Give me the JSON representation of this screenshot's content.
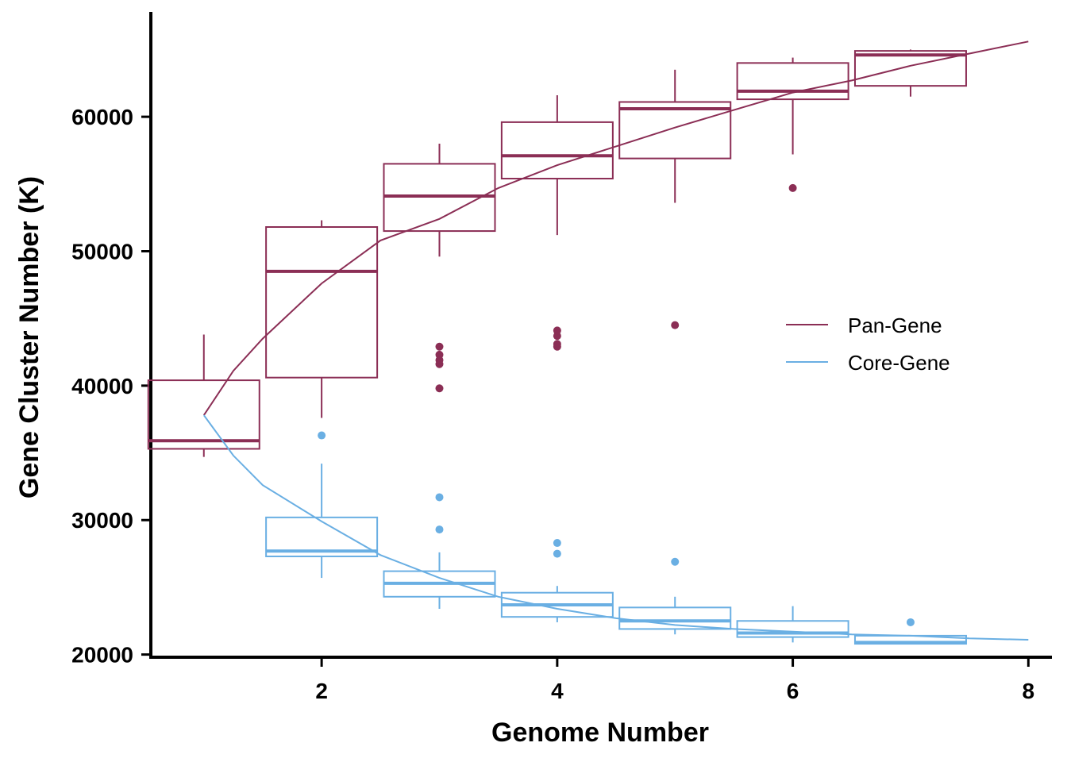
{
  "chart_data": {
    "type": "box",
    "xlabel": "Genome Number",
    "ylabel": "Gene Cluster Number (K)",
    "xlim": [
      0.55,
      8.2
    ],
    "ylim": [
      19800,
      67800
    ],
    "x_ticks": [
      2,
      4,
      6,
      8
    ],
    "y_ticks": [
      20000,
      30000,
      40000,
      50000,
      60000
    ],
    "legend": {
      "placement": "right-middle"
    },
    "series": [
      {
        "name": "Pan-Gene",
        "color": "#8B2E55",
        "boxes": [
          {
            "x": 1,
            "q1": 35300,
            "median": 35900,
            "q3": 40400,
            "whisker_low": 34700,
            "whisker_high": 43800,
            "outliers": []
          },
          {
            "x": 2,
            "q1": 40600,
            "median": 48500,
            "q3": 51800,
            "whisker_low": 37600,
            "whisker_high": 52300,
            "outliers": []
          },
          {
            "x": 3,
            "q1": 51500,
            "median": 54100,
            "q3": 56500,
            "whisker_low": 49600,
            "whisker_high": 58000,
            "outliers": [
              39800,
              41600,
              41900,
              42300,
              42900
            ]
          },
          {
            "x": 4,
            "q1": 55400,
            "median": 57100,
            "q3": 59600,
            "whisker_low": 51200,
            "whisker_high": 61600,
            "outliers": [
              42900,
              43100,
              43700,
              44100
            ]
          },
          {
            "x": 5,
            "q1": 56900,
            "median": 60600,
            "q3": 61100,
            "whisker_low": 53600,
            "whisker_high": 63500,
            "outliers": [
              44500
            ]
          },
          {
            "x": 6,
            "q1": 61300,
            "median": 61900,
            "q3": 64000,
            "whisker_low": 57200,
            "whisker_high": 64400,
            "outliers": [
              54700
            ]
          },
          {
            "x": 7,
            "q1": 62300,
            "median": 64600,
            "q3": 64900,
            "whisker_low": 61500,
            "whisker_high": 65000,
            "outliers": []
          }
        ],
        "fit_curve": {
          "x": [
            1.0,
            1.25,
            1.5,
            2.0,
            2.5,
            3.0,
            3.5,
            4.0,
            4.5,
            5.0,
            5.5,
            6.0,
            6.5,
            7.0,
            7.5,
            8.0
          ],
          "y": [
            37800,
            41100,
            43500,
            47600,
            50800,
            52400,
            54700,
            56400,
            57800,
            59200,
            60500,
            61800,
            62700,
            63800,
            64700,
            65600
          ]
        }
      },
      {
        "name": "Core-Gene",
        "color": "#6AAFE3",
        "boxes": [
          {
            "x": 2,
            "q1": 27300,
            "median": 27700,
            "q3": 30200,
            "whisker_low": 25700,
            "whisker_high": 34200,
            "outliers": [
              36300
            ]
          },
          {
            "x": 3,
            "q1": 24300,
            "median": 25300,
            "q3": 26200,
            "whisker_low": 23400,
            "whisker_high": 27600,
            "outliers": [
              29300,
              31700
            ]
          },
          {
            "x": 4,
            "q1": 22800,
            "median": 23700,
            "q3": 24600,
            "whisker_low": 22400,
            "whisker_high": 25100,
            "outliers": [
              27500,
              28300
            ]
          },
          {
            "x": 5,
            "q1": 21900,
            "median": 22500,
            "q3": 23500,
            "whisker_low": 21500,
            "whisker_high": 24300,
            "outliers": [
              26900
            ]
          },
          {
            "x": 6,
            "q1": 21300,
            "median": 21600,
            "q3": 22500,
            "whisker_low": 20900,
            "whisker_high": 23600,
            "outliers": []
          },
          {
            "x": 7,
            "q1": 20800,
            "median": 20900,
            "q3": 21400,
            "whisker_low": 20800,
            "whisker_high": 21400,
            "outliers": [
              22400
            ]
          }
        ],
        "fit_curve": {
          "x": [
            1.0,
            1.25,
            1.5,
            2.0,
            2.5,
            3.0,
            3.5,
            4.0,
            4.5,
            5.0,
            5.5,
            6.0,
            6.5,
            7.0,
            7.5,
            8.0
          ],
          "y": [
            37800,
            34800,
            32600,
            29900,
            27400,
            25700,
            24300,
            23400,
            22700,
            22200,
            21900,
            21700,
            21500,
            21400,
            21200,
            21100
          ]
        }
      }
    ]
  }
}
